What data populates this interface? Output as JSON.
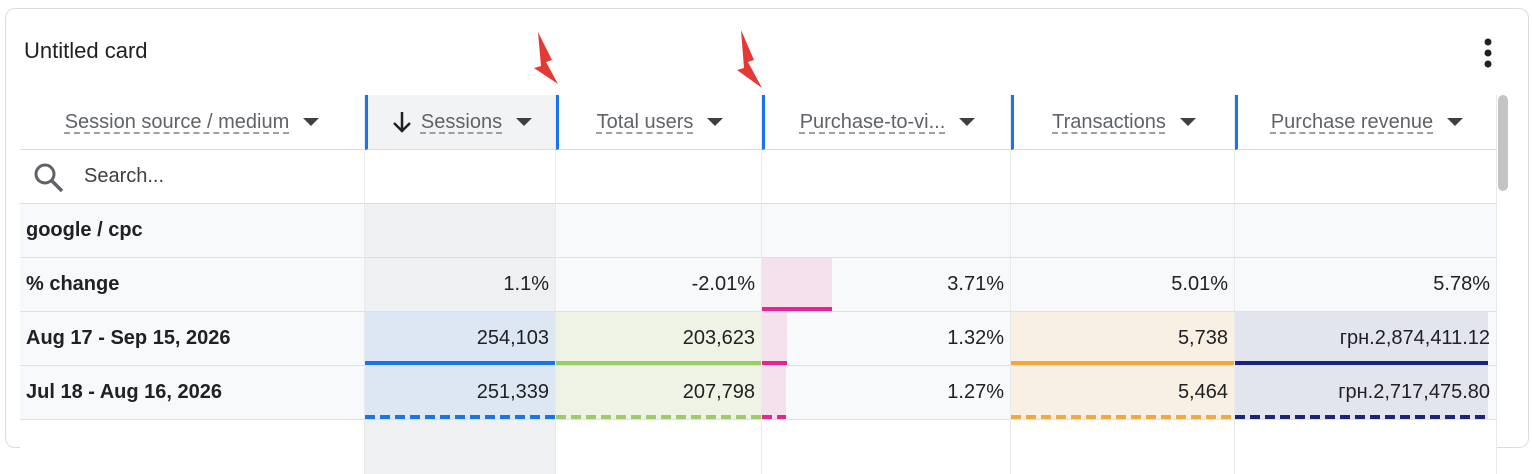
{
  "card": {
    "title": "Untitled card"
  },
  "table": {
    "columns": [
      "Session source / medium",
      "Sessions",
      "Total users",
      "Purchase-to-vi...",
      "Transactions",
      "Purchase revenue"
    ],
    "search_placeholder": "Search...",
    "group": "google / cpc",
    "rows": [
      [
        "% change",
        "1.1%",
        "-2.01%",
        "3.71%",
        "5.01%",
        "5.78%"
      ],
      [
        "Aug 17 - Sep 15, 2026",
        "254,103",
        "203,623",
        "1.32%",
        "5,738",
        "грн.2,874,411.12"
      ],
      [
        "Jul 18 - Aug 16, 2026",
        "251,339",
        "207,798",
        "1.27%",
        "5,464",
        "грн.2,717,475.80"
      ]
    ]
  }
}
